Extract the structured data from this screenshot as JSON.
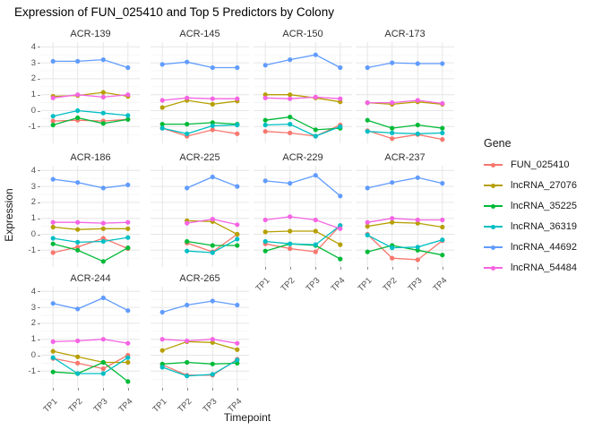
{
  "page": {
    "title": "Expression of FUN_025410 and Top 5 Predictors by Colony"
  },
  "chart_data": {
    "type": "line",
    "title": "Expression of FUN_025410 and Top 5 Predictors by Colony",
    "xlabel": "Timepoint",
    "ylabel": "Expression",
    "legend_title": "Gene",
    "legend_position": "right",
    "grid": "on",
    "categories": [
      "TP1",
      "TP2",
      "TP3",
      "TP4"
    ],
    "y_ticks": [
      4,
      3,
      2,
      1,
      0,
      -1
    ],
    "y_tick_labels": [
      "4",
      "3",
      "2",
      "1",
      "0",
      "-1"
    ],
    "ylim": [
      -2.05,
      4.3
    ],
    "genes": [
      {
        "name": "FUN_025410",
        "color": "#F8766D"
      },
      {
        "name": "lncRNA_27076",
        "color": "#B79F00"
      },
      {
        "name": "lncRNA_35225",
        "color": "#00BA38"
      },
      {
        "name": "lncRNA_36319",
        "color": "#00BFC4"
      },
      {
        "name": "lncRNA_44692",
        "color": "#619CFF"
      },
      {
        "name": "lncRNA_54484",
        "color": "#F564E3"
      }
    ],
    "x_labeled_facets": [
      "ACR-229",
      "ACR-237",
      "ACR-244",
      "ACR-265"
    ],
    "facets": [
      {
        "label": "ACR-139",
        "series": [
          [
            -0.65,
            -0.6,
            -0.65,
            -0.55
          ],
          [
            0.9,
            0.95,
            1.15,
            0.9
          ],
          [
            -0.9,
            -0.45,
            -0.8,
            -0.55
          ],
          [
            -0.35,
            0.0,
            -0.15,
            -0.3
          ],
          [
            3.1,
            3.1,
            3.2,
            2.7
          ],
          [
            0.8,
            1.0,
            0.85,
            1.0
          ]
        ]
      },
      {
        "label": "ACR-145",
        "series": [
          [
            -1.1,
            -1.6,
            -1.2,
            -1.45
          ],
          [
            0.2,
            0.65,
            0.4,
            0.6
          ],
          [
            -0.85,
            -0.85,
            -0.75,
            -0.85
          ],
          [
            -1.1,
            -1.45,
            -0.95,
            -0.9
          ],
          [
            2.9,
            3.05,
            2.7,
            2.7
          ],
          [
            0.65,
            0.8,
            0.75,
            0.75
          ]
        ]
      },
      {
        "label": "ACR-150",
        "series": [
          [
            -1.3,
            -1.4,
            -1.6,
            -0.9
          ],
          [
            1.0,
            1.0,
            0.8,
            0.55
          ],
          [
            -0.6,
            -0.4,
            -1.2,
            -1.1
          ],
          [
            -0.9,
            -0.85,
            -1.6,
            -1.0
          ],
          [
            2.85,
            3.2,
            3.5,
            2.7
          ],
          [
            0.8,
            0.75,
            0.85,
            0.75
          ]
        ]
      },
      {
        "label": "ACR-173",
        "series": [
          [
            -1.25,
            -1.75,
            -1.5,
            -1.8
          ],
          [
            0.5,
            0.4,
            0.55,
            0.4
          ],
          [
            -0.6,
            -1.1,
            -0.9,
            -1.1
          ],
          [
            -1.3,
            -1.4,
            -1.45,
            -1.4
          ],
          [
            2.7,
            3.0,
            2.95,
            2.95
          ],
          [
            0.5,
            0.5,
            0.65,
            0.45
          ]
        ]
      },
      {
        "label": "ACR-186",
        "series": [
          [
            -1.15,
            -0.8,
            -0.25,
            -0.9
          ],
          [
            0.45,
            0.3,
            0.35,
            0.35
          ],
          [
            -0.6,
            -1.0,
            -1.7,
            -0.85
          ],
          [
            -0.25,
            -0.5,
            -0.45,
            -0.2
          ],
          [
            3.45,
            3.25,
            2.9,
            3.1
          ],
          [
            0.75,
            0.75,
            0.7,
            0.75
          ]
        ]
      },
      {
        "label": "ACR-225",
        "series": [
          [
            null,
            -0.55,
            -1.1,
            0.0
          ],
          [
            null,
            0.85,
            0.8,
            0.0
          ],
          [
            null,
            -0.45,
            -0.7,
            -0.7
          ],
          [
            null,
            -1.05,
            -1.15,
            -0.3
          ],
          [
            null,
            2.9,
            3.6,
            3.0
          ],
          [
            null,
            0.7,
            0.95,
            0.6
          ]
        ]
      },
      {
        "label": "ACR-229",
        "series": [
          [
            -0.6,
            -0.9,
            -1.1,
            0.55
          ],
          [
            0.15,
            0.2,
            0.2,
            -0.65
          ],
          [
            -1.05,
            -0.6,
            -0.7,
            -1.55
          ],
          [
            -0.45,
            -0.6,
            -0.65,
            0.55
          ],
          [
            3.35,
            3.2,
            3.7,
            2.4
          ],
          [
            0.9,
            1.1,
            0.9,
            0.35
          ]
        ]
      },
      {
        "label": "ACR-237",
        "series": [
          [
            0.0,
            -1.5,
            -1.6,
            -0.4
          ],
          [
            0.5,
            0.75,
            0.7,
            0.45
          ],
          [
            -1.1,
            -0.7,
            -1.0,
            -1.3
          ],
          [
            -0.05,
            -0.85,
            -0.8,
            -0.35
          ],
          [
            2.9,
            3.25,
            3.55,
            3.2
          ],
          [
            0.75,
            1.0,
            0.9,
            0.9
          ]
        ]
      },
      {
        "label": "ACR-244",
        "series": [
          [
            -0.2,
            -0.5,
            -0.85,
            0.0
          ],
          [
            0.25,
            -0.1,
            -0.45,
            -0.45
          ],
          [
            -1.05,
            -1.15,
            -0.45,
            -1.65
          ],
          [
            -0.15,
            -1.15,
            -1.15,
            -0.15
          ],
          [
            3.25,
            2.9,
            3.6,
            2.8
          ],
          [
            0.85,
            0.9,
            1.0,
            0.75
          ]
        ]
      },
      {
        "label": "ACR-265",
        "series": [
          [
            -0.6,
            -1.25,
            -1.25,
            -0.25
          ],
          [
            0.3,
            0.85,
            0.8,
            0.35
          ],
          [
            -0.55,
            -0.45,
            -0.55,
            -0.5
          ],
          [
            -0.75,
            -1.3,
            -1.2,
            -0.3
          ],
          [
            2.7,
            3.15,
            3.4,
            3.15
          ],
          [
            1.0,
            0.9,
            1.0,
            0.75
          ]
        ]
      }
    ]
  }
}
